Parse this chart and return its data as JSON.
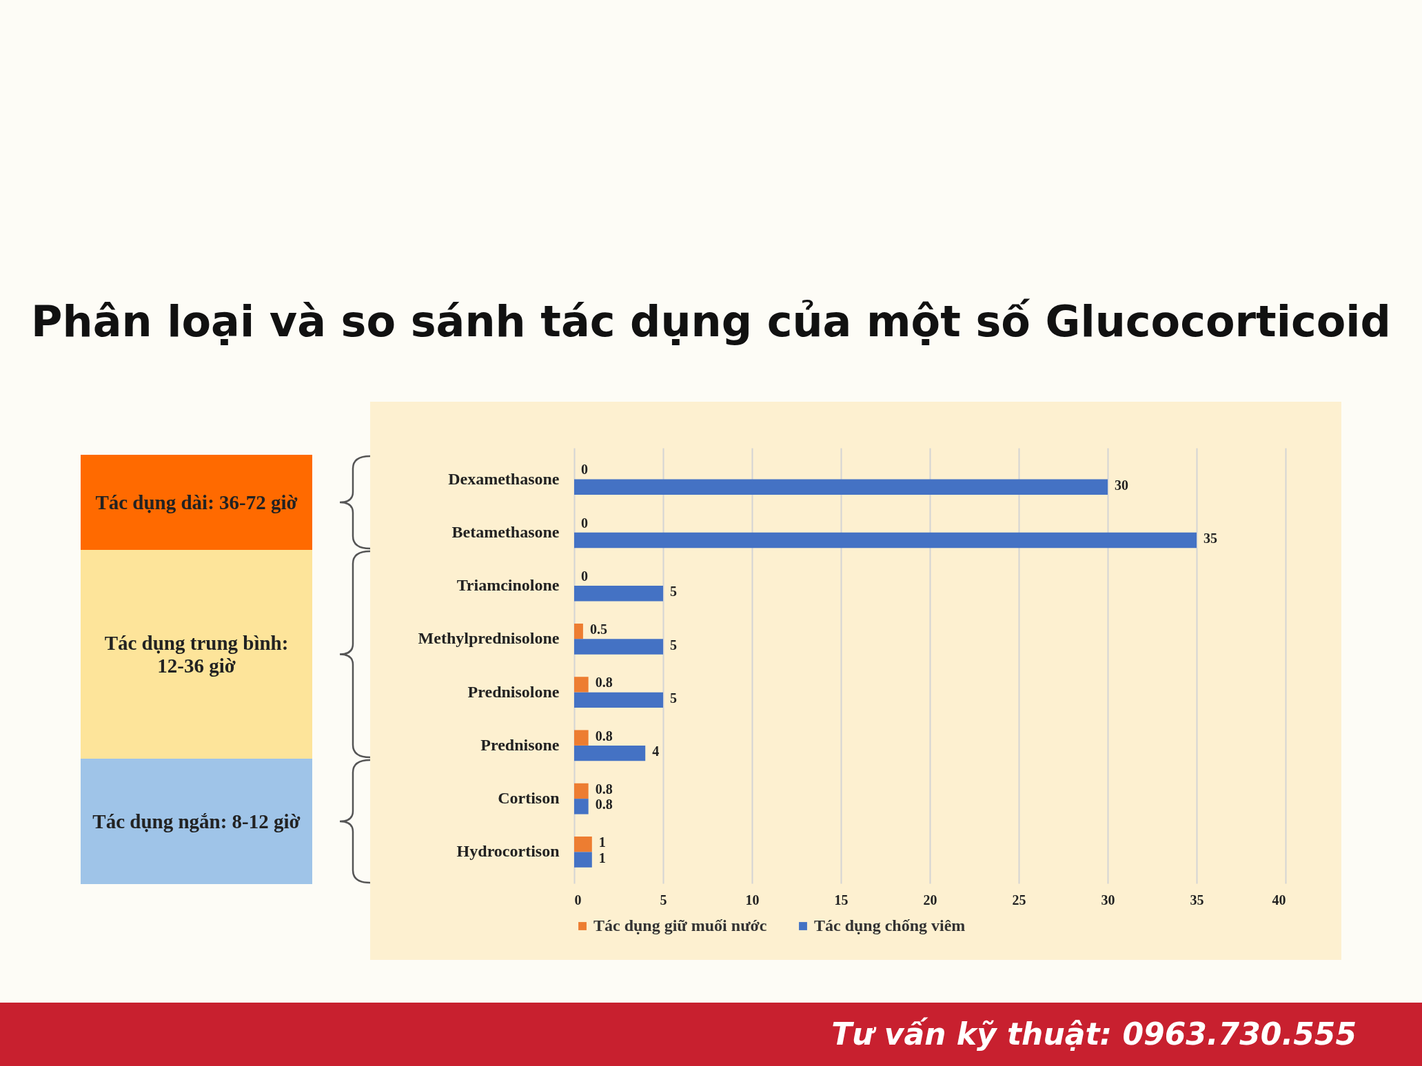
{
  "chart_data": {
    "type": "bar",
    "orientation": "horizontal",
    "title": "Phân loại và so sánh tác dụng của một số Glucocorticoid",
    "categories": [
      "Dexamethasone",
      "Betamethasone",
      "Triamcinolone",
      "Methylprednisolone",
      "Prednisolone",
      "Prednisone",
      "Cortison",
      "Hydrocortison"
    ],
    "series": [
      {
        "name": "Tác dụng giữ muối nước",
        "color": "#ed7d31",
        "values": [
          0,
          0,
          0,
          0.5,
          0.8,
          0.8,
          0.8,
          1
        ]
      },
      {
        "name": "Tác dụng chống viêm",
        "color": "#4472c4",
        "values": [
          30,
          35,
          5,
          5,
          5,
          4,
          0.8,
          1
        ]
      }
    ],
    "xlim": [
      0,
      40
    ],
    "xticks": [
      0,
      5,
      10,
      15,
      20,
      25,
      30,
      35,
      40
    ],
    "grid": "x",
    "legend": "bottom",
    "data_labels": true,
    "annotations": [
      "Tác dụng dài: 36-72 giờ",
      "Tác dụng trung bình: 12-36 giờ",
      "Tác dụng ngắn: 8-12 giờ",
      "Tư vấn kỹ thuật: 0963.730.555"
    ]
  }
}
